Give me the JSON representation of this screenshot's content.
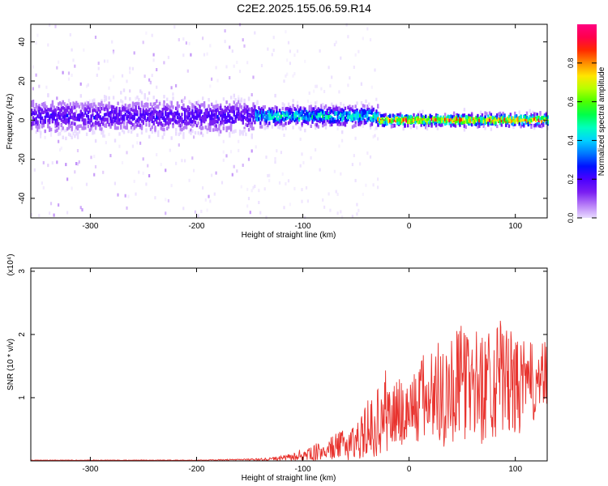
{
  "title": "C2E2.2025.155.06.59.R14",
  "chart_data": [
    {
      "type": "heatmap",
      "xlabel": "Height of straight line (km)",
      "ylabel": "Frequency (Hz)",
      "xlim": [
        -356,
        130
      ],
      "ylim": [
        -50,
        49
      ],
      "xticks": [
        -300,
        -200,
        -100,
        0,
        100
      ],
      "yticks": [
        -40,
        -20,
        0,
        20,
        40
      ],
      "grid": false,
      "colorbar": {
        "label": "Normalized spectral amplitude",
        "range": [
          0,
          1
        ],
        "ticks": [
          0.0,
          0.2,
          0.4,
          0.6,
          0.8
        ],
        "colors": [
          "#e9dcff",
          "#b67cf7",
          "#7a1ef2",
          "#4b00ff",
          "#0012ff",
          "#0078ff",
          "#00d2ff",
          "#00ffbd",
          "#00ff4a",
          "#4cff00",
          "#b6ff00",
          "#ffe600",
          "#ff8c00",
          "#ff2a00",
          "#ff004c",
          "#ff0080"
        ]
      },
      "regions": [
        {
          "x_range": [
            -356,
            -145
          ],
          "band_center_hz": 2,
          "band_halfwidth_hz": 8,
          "band_amplitude": 0.2,
          "background_amplitude": 0.03
        },
        {
          "x_range": [
            -145,
            -30
          ],
          "band_center_hz": 2,
          "band_halfwidth_hz": 5,
          "band_amplitude": 0.45,
          "background_amplitude": 0.01
        },
        {
          "x_range": [
            -30,
            130
          ],
          "band_center_hz": 0,
          "band_halfwidth_hz": 3,
          "band_amplitude": 0.8,
          "background_amplitude": 0.0
        }
      ]
    },
    {
      "type": "line",
      "xlabel": "Height of straight line (km)",
      "ylabel": "SNR (10 * v/v)",
      "y_scale_label": "(x10⁴)",
      "xlim": [
        -356,
        130
      ],
      "ylim": [
        0,
        3.05
      ],
      "xticks": [
        -300,
        -200,
        -100,
        0,
        100
      ],
      "yticks": [
        1,
        2,
        3
      ],
      "grid": false,
      "series": [
        {
          "color": "#e8332e",
          "x": [
            -356,
            -320,
            -280,
            -240,
            -200,
            -160,
            -140,
            -120,
            -100,
            -90,
            -80,
            -70,
            -60,
            -50,
            -40,
            -30,
            -20,
            -10,
            0,
            10,
            20,
            30,
            40,
            50,
            60,
            70,
            80,
            90,
            100,
            110,
            120,
            130
          ],
          "y_center": [
            0.01,
            0.01,
            0.01,
            0.01,
            0.01,
            0.02,
            0.02,
            0.04,
            0.08,
            0.12,
            0.16,
            0.22,
            0.26,
            0.32,
            0.45,
            0.6,
            0.72,
            0.75,
            0.78,
            0.95,
            1.05,
            1.1,
            1.15,
            1.25,
            1.2,
            1.15,
            1.35,
            1.3,
            1.15,
            1.2,
            1.25,
            1.3
          ],
          "y_spread": [
            0.005,
            0.005,
            0.005,
            0.005,
            0.005,
            0.01,
            0.02,
            0.04,
            0.08,
            0.12,
            0.16,
            0.2,
            0.25,
            0.3,
            0.4,
            0.55,
            0.6,
            0.6,
            0.6,
            0.7,
            0.8,
            0.9,
            0.9,
            0.9,
            0.9,
            0.9,
            1.0,
            0.9,
            0.8,
            0.7,
            0.6,
            0.6
          ]
        }
      ]
    }
  ]
}
